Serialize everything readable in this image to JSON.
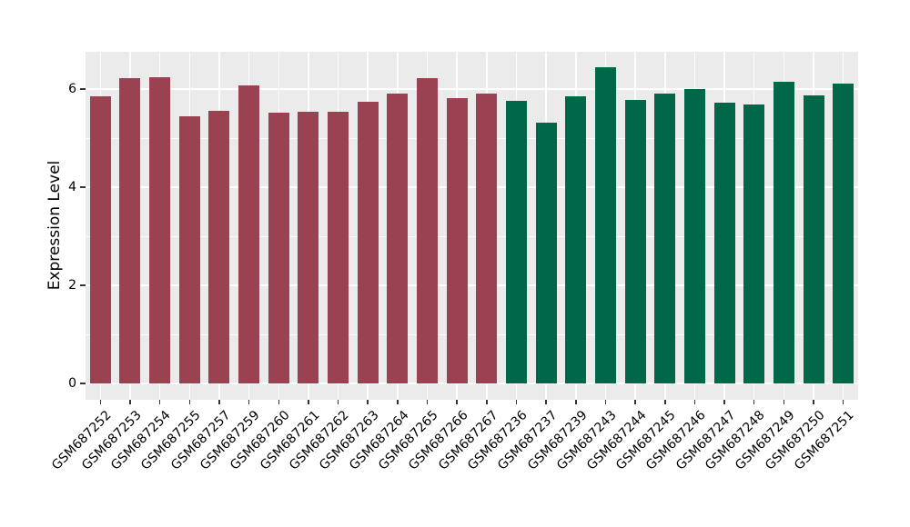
{
  "chart_data": {
    "type": "bar",
    "title": "",
    "xlabel": "",
    "ylabel": "Expression Level",
    "ylim": [
      -0.33,
      6.76
    ],
    "yticks": [
      0,
      2,
      4,
      6
    ],
    "minor_yticks": [
      1,
      3,
      5
    ],
    "grid": "on",
    "legend_position": "none",
    "panel_bg": "#EBEBEB",
    "grid_color": "#FFFFFF",
    "tick_color": "#333333",
    "text_color": "#000000",
    "series": [
      {
        "name": "group-1-maroon",
        "color": "#9A4252",
        "categories": [
          "GSM687252",
          "GSM687253",
          "GSM687254",
          "GSM687255",
          "GSM687257",
          "GSM687259",
          "GSM687260",
          "GSM687261",
          "GSM687262",
          "GSM687263",
          "GSM687264",
          "GSM687265",
          "GSM687266",
          "GSM687267"
        ],
        "values": [
          5.85,
          6.22,
          6.25,
          5.45,
          5.55,
          6.08,
          5.52,
          5.53,
          5.53,
          5.75,
          5.9,
          6.22,
          5.82,
          5.9
        ]
      },
      {
        "name": "group-2-green",
        "color": "#006749",
        "categories": [
          "GSM687236",
          "GSM687237",
          "GSM687239",
          "GSM687243",
          "GSM687244",
          "GSM687245",
          "GSM687246",
          "GSM687247",
          "GSM687248",
          "GSM687249",
          "GSM687250",
          "GSM687251"
        ],
        "values": [
          5.77,
          5.32,
          5.86,
          6.45,
          5.78,
          5.9,
          6.01,
          5.73,
          5.69,
          6.15,
          5.87,
          6.12
        ]
      }
    ]
  }
}
